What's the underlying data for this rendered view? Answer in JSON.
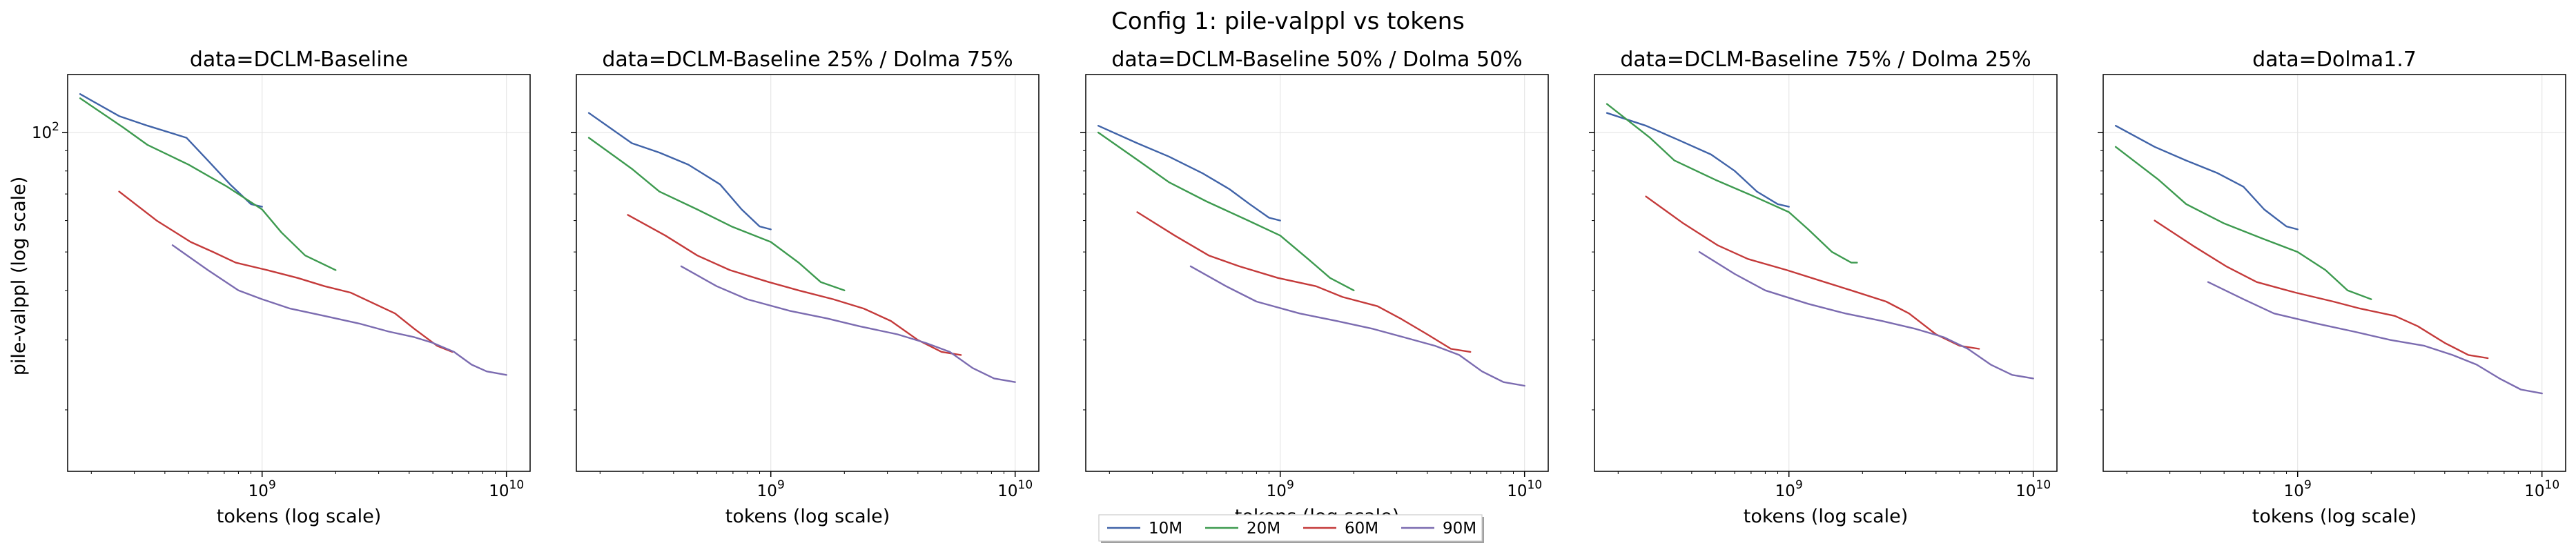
{
  "figure": {
    "suptitle": "Config 1: pile-valppl vs tokens",
    "ylabel": "pile-valppl (log scale)",
    "xlabel": "tokens (log scale)"
  },
  "colors": {
    "10M": "#4063a8",
    "20M": "#3d9a4f",
    "60M": "#c43a3a",
    "90M": "#7b6bb0"
  },
  "legend": {
    "placement": "lower-center",
    "items": [
      "10M",
      "20M",
      "60M",
      "90M"
    ]
  },
  "chart_data": [
    {
      "type": "line",
      "title": "data=DCLM-Baseline",
      "xlabel": "tokens (log scale)",
      "ylabel": "pile-valppl (log scale)",
      "xscale": "log",
      "yscale": "log",
      "xlim": [
        160000000.0,
        12500000000.0
      ],
      "ylim": [
        14,
        140
      ],
      "xticks": [
        "10^9",
        "10^10"
      ],
      "yticks": [
        "10^2"
      ],
      "grid": true,
      "series": [
        {
          "name": "10M",
          "x": [
            180000000.0,
            260000000.0,
            340000000.0,
            490000000.0,
            600000000.0,
            740000000.0,
            900000000.0,
            1000000000.0
          ],
          "y": [
            125,
            110,
            104,
            97,
            85,
            74,
            66,
            65
          ]
        },
        {
          "name": "20M",
          "x": [
            180000000.0,
            270000000.0,
            340000000.0,
            500000000.0,
            720000000.0,
            1000000000.0,
            1200000000.0,
            1500000000.0,
            2000000000.0
          ],
          "y": [
            122,
            103,
            93,
            83,
            73,
            64,
            56,
            49,
            45
          ]
        },
        {
          "name": "60M",
          "x": [
            260000000.0,
            370000000.0,
            510000000.0,
            630000000.0,
            780000000.0,
            1050000000.0,
            1400000000.0,
            1800000000.0,
            2300000000.0,
            3500000000.0,
            4200000000.0,
            5200000000.0,
            6000000000.0
          ],
          "y": [
            71,
            60,
            53,
            50,
            47,
            45,
            43,
            41,
            39.5,
            35,
            32,
            29,
            28
          ]
        },
        {
          "name": "90M",
          "x": [
            430000000.0,
            600000000.0,
            800000000.0,
            1000000000.0,
            1300000000.0,
            1800000000.0,
            2500000000.0,
            3300000000.0,
            4200000000.0,
            5000000000.0,
            6100000000.0,
            7200000000.0,
            8300000000.0,
            10000000000.0
          ],
          "y": [
            52,
            45,
            40,
            38,
            36,
            34.5,
            33,
            31.5,
            30.5,
            29.5,
            28,
            26,
            25,
            24.5
          ]
        }
      ]
    },
    {
      "type": "line",
      "title": "data=DCLM-Baseline 25% / Dolma 75%",
      "xlabel": "tokens (log scale)",
      "xscale": "log",
      "yscale": "log",
      "xlim": [
        160000000.0,
        12500000000.0
      ],
      "ylim": [
        14,
        140
      ],
      "xticks": [
        "10^9",
        "10^10"
      ],
      "grid": true,
      "series": [
        {
          "name": "10M",
          "x": [
            180000000.0,
            270000000.0,
            350000000.0,
            460000000.0,
            620000000.0,
            760000000.0,
            900000000.0,
            1000000000.0
          ],
          "y": [
            112,
            94,
            89,
            83,
            74,
            64,
            58,
            57
          ]
        },
        {
          "name": "20M",
          "x": [
            180000000.0,
            270000000.0,
            350000000.0,
            500000000.0,
            690000000.0,
            1000000000.0,
            1300000000.0,
            1600000000.0,
            2000000000.0
          ],
          "y": [
            97,
            81,
            71,
            64,
            58,
            53,
            47,
            42,
            40
          ]
        },
        {
          "name": "60M",
          "x": [
            260000000.0,
            370000000.0,
            500000000.0,
            680000000.0,
            980000000.0,
            1300000000.0,
            1800000000.0,
            2400000000.0,
            3100000000.0,
            4000000000.0,
            5000000000.0,
            6000000000.0
          ],
          "y": [
            62,
            55,
            49,
            45,
            42,
            40,
            38,
            36,
            33.5,
            30,
            28,
            27.5
          ]
        },
        {
          "name": "90M",
          "x": [
            430000000.0,
            600000000.0,
            800000000.0,
            1200000000.0,
            1700000000.0,
            2300000000.0,
            3300000000.0,
            4300000000.0,
            5400000000.0,
            6700000000.0,
            8200000000.0,
            10000000000.0
          ],
          "y": [
            46,
            41,
            38,
            35.5,
            34,
            32.5,
            31,
            29.5,
            28,
            25.5,
            24,
            23.5
          ]
        }
      ]
    },
    {
      "type": "line",
      "title": "data=DCLM-Baseline 50% / Dolma 50%",
      "xlabel": "tokens (log scale)",
      "xscale": "log",
      "yscale": "log",
      "xlim": [
        160000000.0,
        12500000000.0
      ],
      "ylim": [
        14,
        140
      ],
      "xticks": [
        "10^9",
        "10^10"
      ],
      "grid": true,
      "series": [
        {
          "name": "10M",
          "x": [
            180000000.0,
            260000000.0,
            350000000.0,
            480000000.0,
            620000000.0,
            750000000.0,
            900000000.0,
            1000000000.0
          ],
          "y": [
            104,
            94,
            87,
            79,
            72,
            66,
            61,
            60
          ]
        },
        {
          "name": "20M",
          "x": [
            180000000.0,
            270000000.0,
            350000000.0,
            500000000.0,
            740000000.0,
            1000000000.0,
            1300000000.0,
            1600000000.0,
            2000000000.0
          ],
          "y": [
            100,
            84,
            75,
            67,
            60,
            55,
            48,
            43,
            40
          ]
        },
        {
          "name": "60M",
          "x": [
            260000000.0,
            370000000.0,
            510000000.0,
            680000000.0,
            980000000.0,
            1400000000.0,
            1800000000.0,
            2500000000.0,
            3100000000.0,
            4000000000.0,
            5000000000.0,
            6000000000.0
          ],
          "y": [
            63,
            55,
            49,
            46,
            43,
            41,
            38.5,
            36.5,
            34,
            31,
            28.5,
            28
          ]
        },
        {
          "name": "90M",
          "x": [
            430000000.0,
            600000000.0,
            800000000.0,
            1200000000.0,
            1700000000.0,
            2400000000.0,
            3200000000.0,
            4300000000.0,
            5400000000.0,
            6700000000.0,
            8200000000.0,
            10000000000.0
          ],
          "y": [
            46,
            41,
            37.5,
            35,
            33.5,
            32,
            30.5,
            29,
            27.5,
            25,
            23.5,
            23
          ]
        }
      ]
    },
    {
      "type": "line",
      "title": "data=DCLM-Baseline 75% / Dolma 25%",
      "xlabel": "tokens (log scale)",
      "xscale": "log",
      "yscale": "log",
      "xlim": [
        160000000.0,
        12500000000.0
      ],
      "ylim": [
        14,
        140
      ],
      "xticks": [
        "10^9",
        "10^10"
      ],
      "grid": true,
      "series": [
        {
          "name": "10M",
          "x": [
            180000000.0,
            260000000.0,
            350000000.0,
            480000000.0,
            600000000.0,
            740000000.0,
            900000000.0,
            1000000000.0
          ],
          "y": [
            112,
            104,
            96,
            88,
            80,
            71,
            66,
            65
          ]
        },
        {
          "name": "20M",
          "x": [
            180000000.0,
            270000000.0,
            340000000.0,
            500000000.0,
            720000000.0,
            1000000000.0,
            1200000000.0,
            1500000000.0,
            1800000000.0,
            1900000000.0
          ],
          "y": [
            118,
            97,
            85,
            76,
            69,
            63,
            57,
            50,
            47,
            47
          ]
        },
        {
          "name": "60M",
          "x": [
            260000000.0,
            370000000.0,
            510000000.0,
            680000000.0,
            980000000.0,
            1400000000.0,
            1800000000.0,
            2500000000.0,
            3100000000.0,
            4000000000.0,
            5000000000.0,
            6000000000.0
          ],
          "y": [
            69,
            59,
            52,
            48,
            45,
            42,
            40,
            37.5,
            35,
            31,
            29,
            28.5
          ]
        },
        {
          "name": "90M",
          "x": [
            430000000.0,
            600000000.0,
            800000000.0,
            1200000000.0,
            1700000000.0,
            2400000000.0,
            3300000000.0,
            4300000000.0,
            5400000000.0,
            6700000000.0,
            8200000000.0,
            10000000000.0
          ],
          "y": [
            50,
            44,
            40,
            37,
            35,
            33.5,
            32,
            30.5,
            28.5,
            26,
            24.5,
            24
          ]
        }
      ]
    },
    {
      "type": "line",
      "title": "data=Dolma1.7",
      "xlabel": "tokens (log scale)",
      "xscale": "log",
      "yscale": "log",
      "xlim": [
        160000000.0,
        12500000000.0
      ],
      "ylim": [
        14,
        140
      ],
      "xticks": [
        "10^9",
        "10^10"
      ],
      "grid": true,
      "series": [
        {
          "name": "10M",
          "x": [
            180000000.0,
            260000000.0,
            350000000.0,
            470000000.0,
            600000000.0,
            730000000.0,
            900000000.0,
            1000000000.0
          ],
          "y": [
            104,
            92,
            85,
            79,
            73,
            64,
            58,
            57
          ]
        },
        {
          "name": "20M",
          "x": [
            180000000.0,
            270000000.0,
            350000000.0,
            500000000.0,
            720000000.0,
            1000000000.0,
            1300000000.0,
            1600000000.0,
            2000000000.0
          ],
          "y": [
            92,
            76,
            66,
            59,
            54,
            50,
            45,
            40,
            38
          ]
        },
        {
          "name": "60M",
          "x": [
            260000000.0,
            370000000.0,
            510000000.0,
            680000000.0,
            980000000.0,
            1400000000.0,
            1800000000.0,
            2500000000.0,
            3100000000.0,
            4000000000.0,
            5000000000.0,
            6000000000.0
          ],
          "y": [
            60,
            52,
            46,
            42,
            39.5,
            37.5,
            36,
            34.5,
            32.5,
            29.5,
            27.5,
            27
          ]
        },
        {
          "name": "90M",
          "x": [
            430000000.0,
            600000000.0,
            800000000.0,
            1200000000.0,
            1700000000.0,
            2400000000.0,
            3300000000.0,
            4300000000.0,
            5400000000.0,
            6700000000.0,
            8200000000.0,
            10000000000.0
          ],
          "y": [
            42,
            38,
            35,
            33,
            31.5,
            30,
            29,
            27.5,
            26,
            24,
            22.5,
            22
          ]
        }
      ]
    }
  ]
}
